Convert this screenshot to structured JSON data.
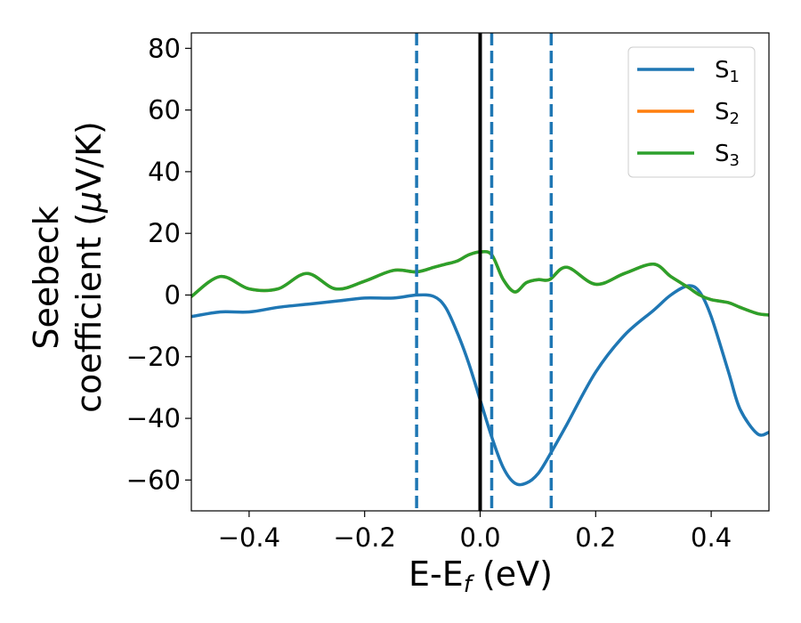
{
  "chart_data": {
    "type": "line",
    "xlabel": {
      "main": "E-E",
      "sub": "f",
      "unit": " (eV)"
    },
    "ylabel": {
      "line1": "Seebeck",
      "line2_prefix": "coefficient  (",
      "mu": "μ",
      "line2_suffix": "V/K)"
    },
    "xlim": [
      -0.5,
      0.5
    ],
    "ylim": [
      -70,
      85
    ],
    "xticks": [
      -0.4,
      -0.2,
      0.0,
      0.2,
      0.4
    ],
    "xtick_labels": [
      "−0.4",
      "−0.2",
      "0.0",
      "0.2",
      "0.4"
    ],
    "yticks": [
      -60,
      -40,
      -20,
      0,
      20,
      40,
      60,
      80
    ],
    "ytick_labels": [
      "−60",
      "−40",
      "−20",
      "0",
      "20",
      "40",
      "60",
      "80"
    ],
    "grid": false,
    "legend_position": "top-right",
    "series": [
      {
        "name": "S",
        "sub": "1",
        "color": "#1f77b4",
        "x": [
          -0.5,
          -0.45,
          -0.4,
          -0.35,
          -0.3,
          -0.25,
          -0.2,
          -0.15,
          -0.11,
          -0.08,
          -0.06,
          -0.04,
          -0.02,
          0.0,
          0.02,
          0.04,
          0.06,
          0.08,
          0.1,
          0.12,
          0.15,
          0.2,
          0.25,
          0.3,
          0.33,
          0.36,
          0.38,
          0.4,
          0.43,
          0.45,
          0.48,
          0.5
        ],
        "y": [
          -7,
          -5.5,
          -5.5,
          -4,
          -3,
          -2,
          -1,
          -1,
          0,
          -0.5,
          -4,
          -12,
          -22,
          -34,
          -46,
          -56,
          -61,
          -61,
          -58,
          -52,
          -42,
          -25,
          -13,
          -5,
          0,
          3,
          1,
          -7,
          -25,
          -37,
          -45,
          -44.5
        ]
      },
      {
        "name": "S",
        "sub": "2",
        "color": "#ff7f0e",
        "x": [
          -0.5,
          -0.45,
          -0.4,
          -0.35,
          -0.3,
          -0.25,
          -0.2,
          -0.15,
          -0.11,
          -0.08,
          -0.06,
          -0.04,
          -0.02,
          0.0,
          0.02,
          0.04,
          0.06,
          0.08,
          0.1,
          0.12,
          0.15,
          0.2,
          0.25,
          0.3,
          0.33,
          0.36,
          0.38,
          0.4,
          0.43,
          0.45,
          0.48,
          0.5
        ],
        "y": [
          -0.5,
          6,
          2,
          2,
          7,
          2,
          4.5,
          8,
          7.5,
          9,
          10,
          11,
          13,
          14,
          13,
          5,
          1,
          4,
          5,
          5,
          9,
          3.5,
          7,
          10,
          6,
          2.5,
          0,
          -1.5,
          -2.5,
          -4,
          -6,
          -6.5
        ]
      },
      {
        "name": "S",
        "sub": "3",
        "color": "#2ca02c",
        "x": [
          -0.5,
          -0.45,
          -0.4,
          -0.35,
          -0.3,
          -0.25,
          -0.2,
          -0.15,
          -0.11,
          -0.08,
          -0.06,
          -0.04,
          -0.02,
          0.0,
          0.02,
          0.04,
          0.06,
          0.08,
          0.1,
          0.12,
          0.15,
          0.2,
          0.25,
          0.3,
          0.33,
          0.36,
          0.38,
          0.4,
          0.43,
          0.45,
          0.48,
          0.5
        ],
        "y": [
          -0.5,
          6,
          2,
          2,
          7,
          2,
          4.5,
          8,
          7.5,
          9,
          10,
          11,
          13,
          14,
          13,
          5,
          1,
          4,
          5,
          5,
          9,
          3.5,
          7,
          10,
          6,
          2.5,
          0,
          -1.5,
          -2.5,
          -4,
          -6,
          -6.5
        ]
      }
    ],
    "vlines": [
      {
        "x": -0.11,
        "style": "dashed",
        "color": "#1f77b4"
      },
      {
        "x": 0.0,
        "style": "solid",
        "color": "#000000"
      },
      {
        "x": 0.02,
        "style": "dashed",
        "color": "#1f77b4"
      },
      {
        "x": 0.123,
        "style": "dashed",
        "color": "#1f77b4"
      }
    ]
  }
}
